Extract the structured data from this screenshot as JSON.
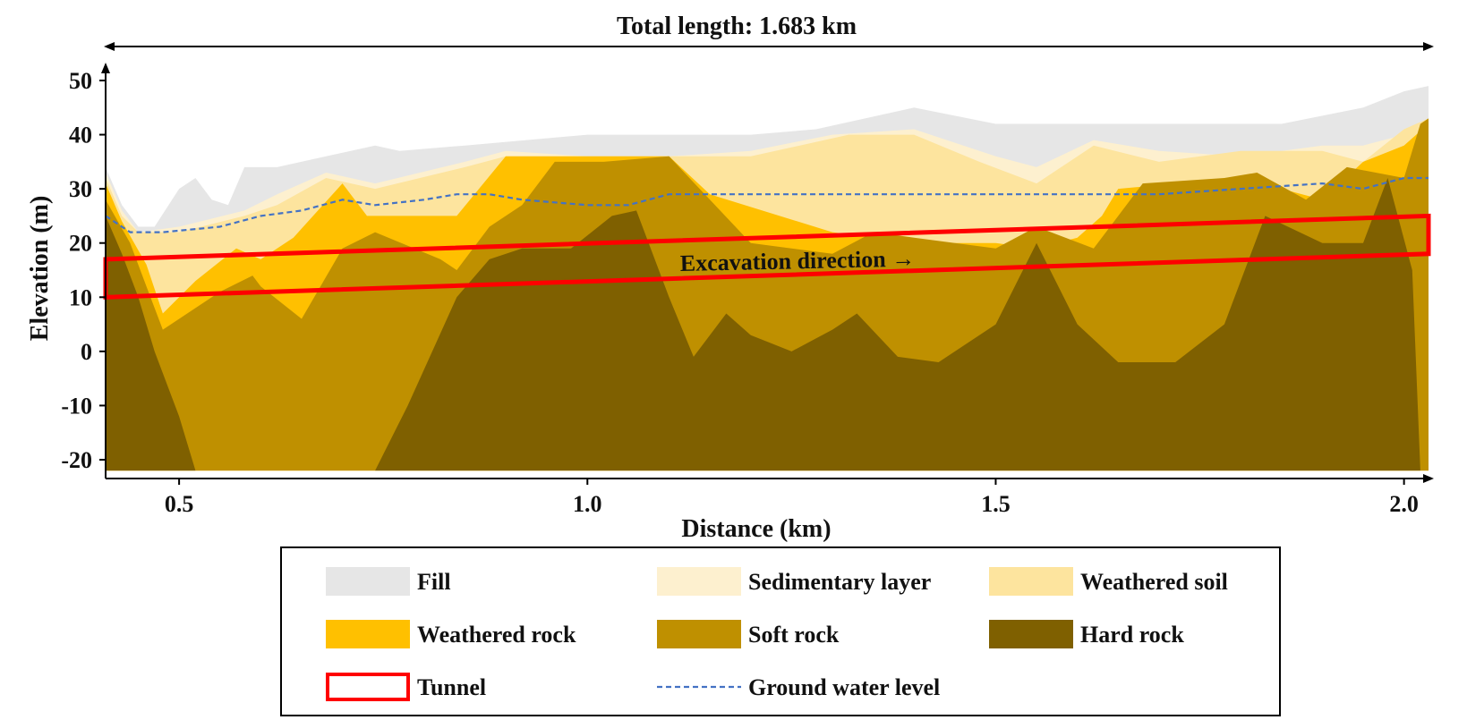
{
  "chart_data": {
    "type": "area",
    "title": "Total length: 1.683 km",
    "xlabel": "Distance (km)",
    "ylabel": "Elevation (m)",
    "xlim": [
      0.41,
      2.03
    ],
    "ylim": [
      -22,
      50
    ],
    "x_ticks": [
      0.5,
      1.0,
      1.5,
      2.0
    ],
    "x_tick_labels": [
      "0.5",
      "1.0",
      "1.5",
      "2.0"
    ],
    "y_ticks": [
      50,
      40,
      30,
      20,
      10,
      0,
      -10,
      -20
    ],
    "y_tick_labels": [
      "50",
      "40",
      "30",
      "20",
      "10",
      "0",
      "-10",
      "-20"
    ],
    "grid": false,
    "legend_placement": "bottom",
    "annotation": "Excavation direction →",
    "colors": {
      "fill": "#e6e6e6",
      "sedimentary": "#fdf0cf",
      "weathered_soil": "#fde49e",
      "weathered_rock": "#ffc000",
      "soft_rock": "#bf9000",
      "hard_rock": "#7f6000",
      "tunnel": "#ff0000",
      "groundwater": "#4472c4"
    },
    "layers": [
      {
        "name": "Fill",
        "key": "fill",
        "top": [
          [
            0.41,
            34
          ],
          [
            0.43,
            27
          ],
          [
            0.45,
            23
          ],
          [
            0.47,
            23
          ],
          [
            0.5,
            30
          ],
          [
            0.52,
            32
          ],
          [
            0.54,
            28
          ],
          [
            0.56,
            27
          ],
          [
            0.58,
            34
          ],
          [
            0.62,
            34
          ],
          [
            0.68,
            36
          ],
          [
            0.74,
            38
          ],
          [
            0.77,
            37
          ],
          [
            0.85,
            38
          ],
          [
            1.0,
            40
          ],
          [
            1.2,
            40
          ],
          [
            1.28,
            41
          ],
          [
            1.4,
            45
          ],
          [
            1.5,
            42
          ],
          [
            1.6,
            42
          ],
          [
            1.7,
            42
          ],
          [
            1.85,
            42
          ],
          [
            1.95,
            45
          ],
          [
            2.0,
            48
          ],
          [
            2.03,
            49
          ]
        ]
      },
      {
        "name": "Sedimentary layer",
        "key": "sedimentary",
        "top": [
          [
            0.41,
            33
          ],
          [
            0.43,
            26
          ],
          [
            0.45,
            22
          ],
          [
            0.5,
            23
          ],
          [
            0.58,
            26
          ],
          [
            0.62,
            29
          ],
          [
            0.68,
            33
          ],
          [
            0.74,
            31
          ],
          [
            0.85,
            35
          ],
          [
            0.9,
            37
          ],
          [
            1.0,
            36
          ],
          [
            1.1,
            36
          ],
          [
            1.2,
            37
          ],
          [
            1.3,
            40
          ],
          [
            1.4,
            41
          ],
          [
            1.5,
            36
          ],
          [
            1.55,
            34
          ],
          [
            1.62,
            39
          ],
          [
            1.7,
            37
          ],
          [
            1.8,
            36
          ],
          [
            1.9,
            38
          ],
          [
            1.95,
            38
          ],
          [
            2.0,
            40
          ],
          [
            2.03,
            43
          ]
        ]
      },
      {
        "name": "Weathered soil",
        "key": "weathered_soil",
        "top": [
          [
            0.41,
            32
          ],
          [
            0.43,
            25
          ],
          [
            0.45,
            22
          ],
          [
            0.5,
            22
          ],
          [
            0.58,
            25
          ],
          [
            0.62,
            27
          ],
          [
            0.68,
            32
          ],
          [
            0.74,
            30
          ],
          [
            0.85,
            34
          ],
          [
            0.9,
            36
          ],
          [
            1.0,
            36
          ],
          [
            1.1,
            36
          ],
          [
            1.2,
            36
          ],
          [
            1.32,
            40
          ],
          [
            1.4,
            40
          ],
          [
            1.48,
            35
          ],
          [
            1.55,
            31
          ],
          [
            1.62,
            38
          ],
          [
            1.7,
            35
          ],
          [
            1.8,
            37
          ],
          [
            1.9,
            37
          ],
          [
            1.95,
            35
          ],
          [
            2.0,
            41
          ],
          [
            2.03,
            43
          ]
        ]
      },
      {
        "name": "Weathered rock",
        "key": "weathered_rock",
        "top": [
          [
            0.41,
            31
          ],
          [
            0.43,
            24
          ],
          [
            0.46,
            16
          ],
          [
            0.48,
            7
          ],
          [
            0.52,
            13
          ],
          [
            0.57,
            19
          ],
          [
            0.6,
            17
          ],
          [
            0.64,
            21
          ],
          [
            0.7,
            31
          ],
          [
            0.73,
            25
          ],
          [
            0.84,
            25
          ],
          [
            0.9,
            36
          ],
          [
            1.0,
            36
          ],
          [
            1.1,
            36
          ],
          [
            1.15,
            29
          ],
          [
            1.3,
            22
          ],
          [
            1.4,
            20
          ],
          [
            1.5,
            20
          ],
          [
            1.55,
            19
          ],
          [
            1.6,
            21
          ],
          [
            1.63,
            25
          ],
          [
            1.65,
            30
          ],
          [
            1.8,
            32
          ],
          [
            1.9,
            28
          ],
          [
            1.95,
            35
          ],
          [
            2.0,
            38
          ],
          [
            2.03,
            42
          ]
        ]
      },
      {
        "name": "Soft rock",
        "key": "soft_rock",
        "top": [
          [
            0.41,
            28
          ],
          [
            0.44,
            20
          ],
          [
            0.46,
            12
          ],
          [
            0.48,
            4
          ],
          [
            0.52,
            8
          ],
          [
            0.55,
            11
          ],
          [
            0.59,
            14
          ],
          [
            0.6,
            12
          ],
          [
            0.65,
            6
          ],
          [
            0.7,
            19
          ],
          [
            0.74,
            22
          ],
          [
            0.82,
            17
          ],
          [
            0.84,
            15
          ],
          [
            0.88,
            23
          ],
          [
            0.92,
            27
          ],
          [
            0.96,
            35
          ],
          [
            1.02,
            35
          ],
          [
            1.1,
            36
          ],
          [
            1.2,
            20
          ],
          [
            1.3,
            18
          ],
          [
            1.35,
            22
          ],
          [
            1.4,
            21
          ],
          [
            1.5,
            19
          ],
          [
            1.55,
            23
          ],
          [
            1.62,
            19
          ],
          [
            1.68,
            31
          ],
          [
            1.78,
            32
          ],
          [
            1.82,
            33
          ],
          [
            1.88,
            28
          ],
          [
            1.93,
            34
          ],
          [
            2.0,
            32
          ],
          [
            2.02,
            42
          ],
          [
            2.03,
            43
          ]
        ]
      },
      {
        "name": "Hard rock",
        "key": "hard_rock",
        "top": [
          [
            0.41,
            25
          ],
          [
            0.43,
            18
          ],
          [
            0.45,
            10
          ],
          [
            0.47,
            0
          ],
          [
            0.5,
            -12
          ],
          [
            0.52,
            -22
          ],
          [
            0.74,
            -22
          ],
          [
            0.78,
            -10
          ],
          [
            0.84,
            10
          ],
          [
            0.88,
            17
          ],
          [
            0.92,
            19
          ],
          [
            0.98,
            19
          ],
          [
            1.03,
            25
          ],
          [
            1.06,
            26
          ],
          [
            1.1,
            10
          ],
          [
            1.13,
            -1
          ],
          [
            1.17,
            7
          ],
          [
            1.2,
            3
          ],
          [
            1.25,
            0
          ],
          [
            1.3,
            4
          ],
          [
            1.33,
            7
          ],
          [
            1.38,
            -1
          ],
          [
            1.43,
            -2
          ],
          [
            1.5,
            5
          ],
          [
            1.55,
            20
          ],
          [
            1.6,
            5
          ],
          [
            1.65,
            -2
          ],
          [
            1.72,
            -2
          ],
          [
            1.78,
            5
          ],
          [
            1.83,
            25
          ],
          [
            1.9,
            20
          ],
          [
            1.95,
            20
          ],
          [
            1.98,
            32
          ],
          [
            2.01,
            15
          ],
          [
            2.02,
            -22
          ]
        ]
      }
    ],
    "ground_water_level": [
      [
        0.41,
        25
      ],
      [
        0.44,
        22
      ],
      [
        0.48,
        22
      ],
      [
        0.55,
        23
      ],
      [
        0.6,
        25
      ],
      [
        0.65,
        26
      ],
      [
        0.7,
        28
      ],
      [
        0.74,
        27
      ],
      [
        0.8,
        28
      ],
      [
        0.84,
        29
      ],
      [
        0.88,
        29
      ],
      [
        0.92,
        28
      ],
      [
        1.0,
        27
      ],
      [
        1.05,
        27
      ],
      [
        1.1,
        29
      ],
      [
        1.2,
        29
      ],
      [
        1.3,
        29
      ],
      [
        1.4,
        29
      ],
      [
        1.5,
        29
      ],
      [
        1.6,
        29
      ],
      [
        1.7,
        29
      ],
      [
        1.8,
        30
      ],
      [
        1.9,
        31
      ],
      [
        1.95,
        30
      ],
      [
        2.0,
        32
      ],
      [
        2.03,
        32
      ]
    ],
    "tunnel": {
      "x_start": 0.41,
      "x_end": 2.03,
      "bottom_start": 10,
      "top_start": 17,
      "bottom_end": 18,
      "top_end": 25
    },
    "legend": [
      {
        "label": "Fill",
        "key": "fill",
        "swatch": "fill"
      },
      {
        "label": "Sedimentary layer",
        "key": "sedimentary",
        "swatch": "fill"
      },
      {
        "label": "Weathered soil",
        "key": "weathered_soil",
        "swatch": "fill"
      },
      {
        "label": "Weathered rock",
        "key": "weathered_rock",
        "swatch": "fill"
      },
      {
        "label": "Soft rock",
        "key": "soft_rock",
        "swatch": "fill"
      },
      {
        "label": "Hard rock",
        "key": "hard_rock",
        "swatch": "fill"
      },
      {
        "label": "Tunnel",
        "key": "tunnel",
        "swatch": "outline"
      },
      {
        "label": "Ground water level",
        "key": "groundwater",
        "swatch": "dash"
      }
    ]
  }
}
